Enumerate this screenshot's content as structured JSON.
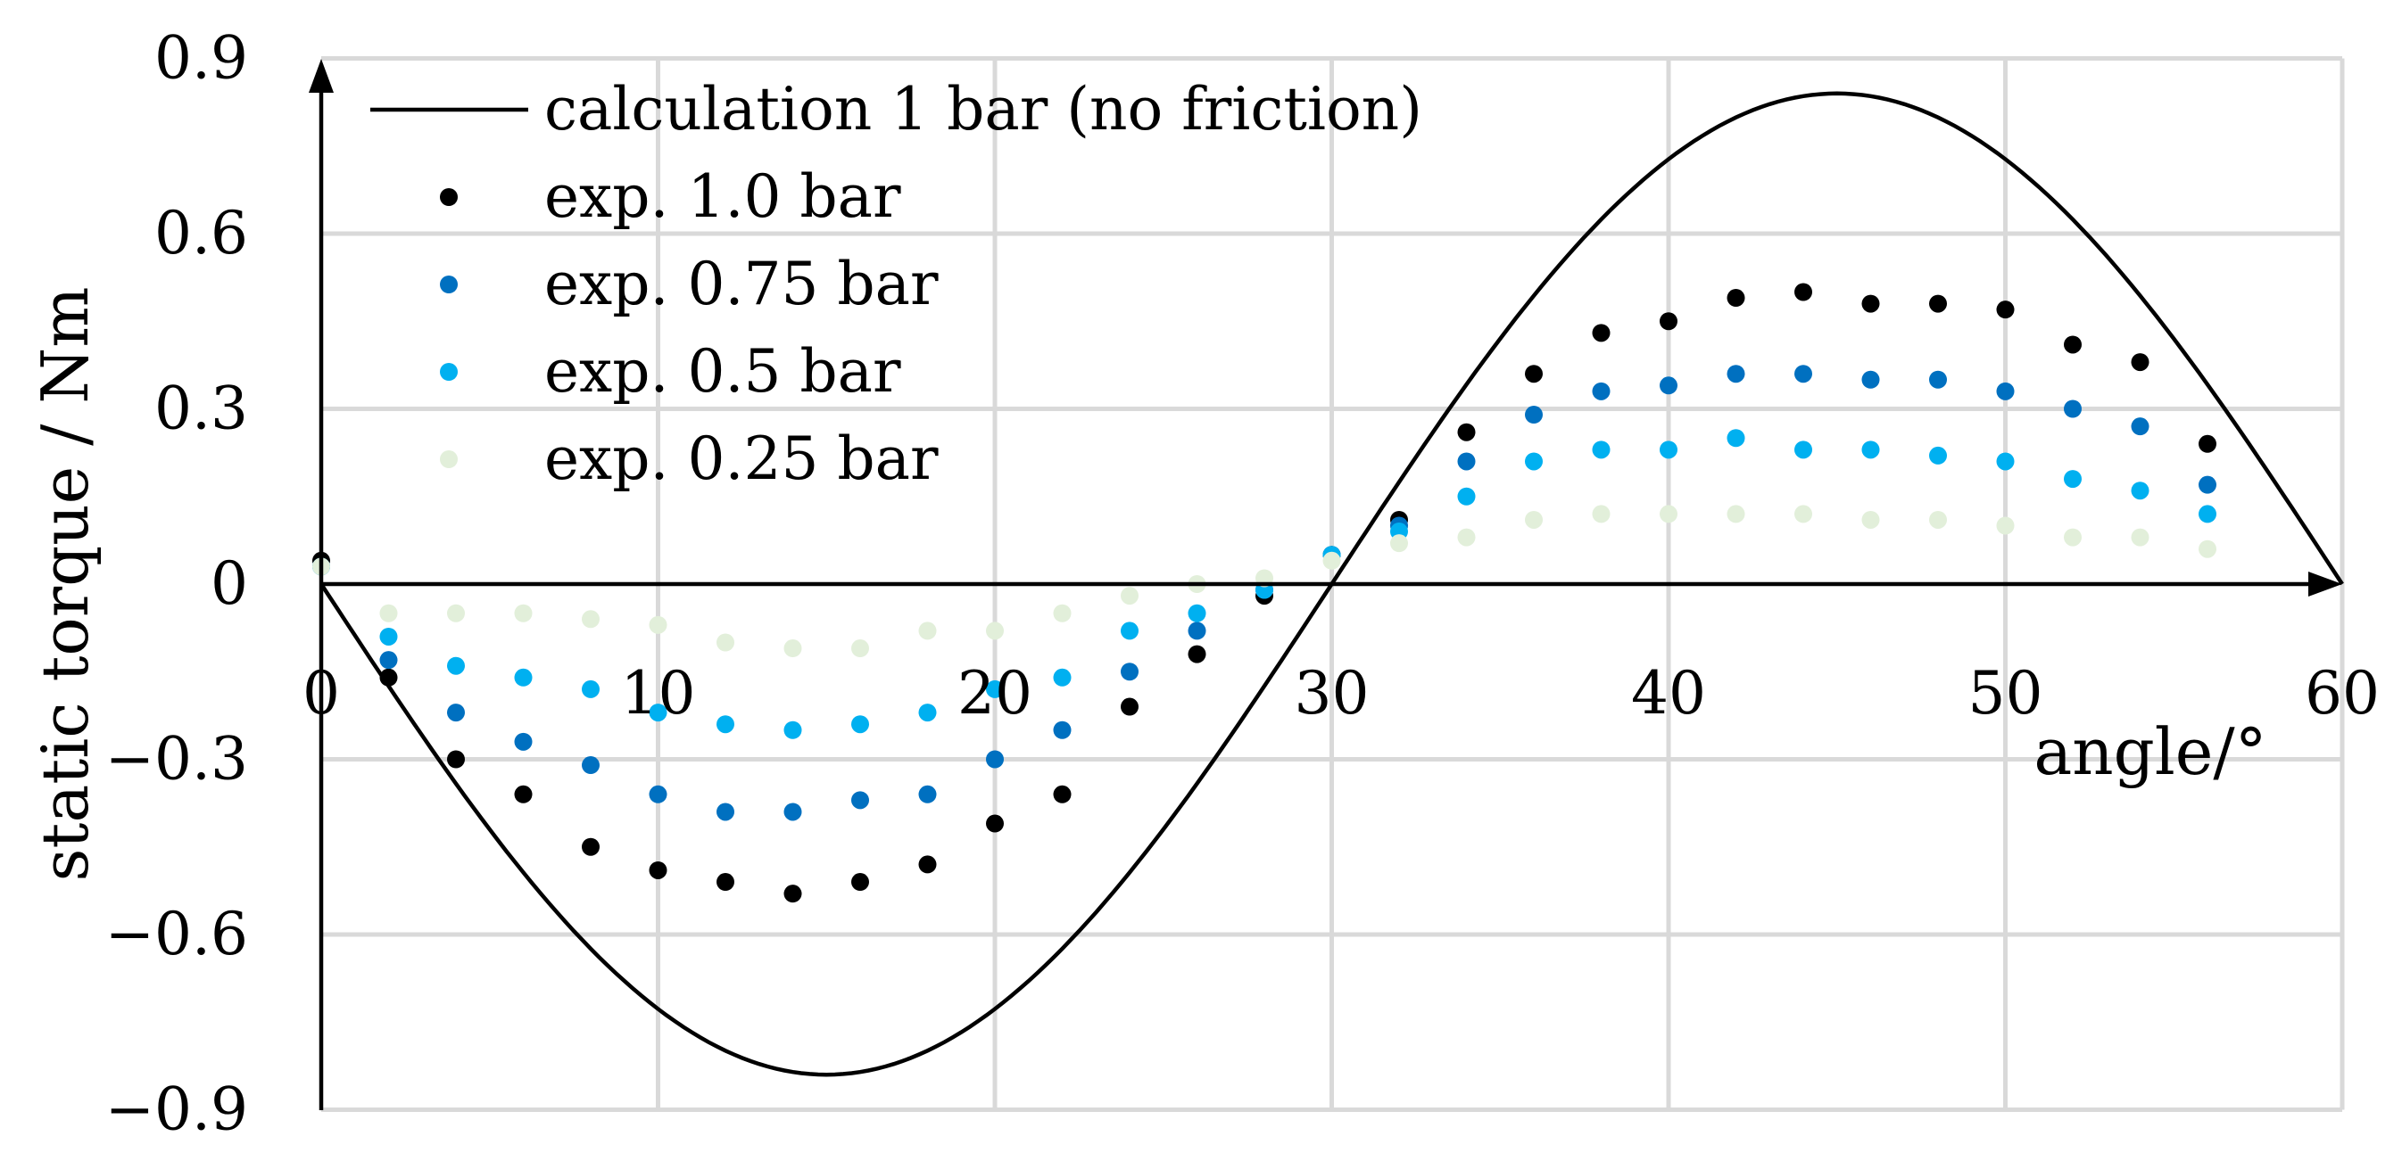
{
  "chart_data": {
    "type": "scatter",
    "title": "",
    "xlabel": "angle/°",
    "ylabel": "static torque / Nm",
    "xlim": [
      0,
      60
    ],
    "ylim": [
      -0.9,
      0.9
    ],
    "grid": true,
    "legend_position": "top-left",
    "x_ticks": [
      "0",
      "10",
      "20",
      "30",
      "40",
      "50",
      "60"
    ],
    "y_ticks": [
      "−0.9",
      "−0.6",
      "−0.3",
      "0",
      "0.3",
      "0.6",
      "0.9"
    ],
    "line_series": {
      "name": "calculation 1 bar (no friction)",
      "color": "#000000",
      "function": "sine",
      "amplitude": 0.84,
      "period": 60,
      "x_range": [
        0,
        60
      ]
    },
    "series": [
      {
        "name": "exp. 1.0 bar",
        "color": "#000000",
        "x": [
          0,
          2,
          4,
          6,
          8,
          10,
          12,
          14,
          16,
          18,
          20,
          22,
          24,
          26,
          28,
          30,
          32,
          34,
          36,
          38,
          40,
          42,
          44,
          46,
          48,
          50,
          52,
          54,
          56
        ],
        "y": [
          0.04,
          -0.16,
          -0.3,
          -0.36,
          -0.45,
          -0.49,
          -0.51,
          -0.53,
          -0.51,
          -0.48,
          -0.41,
          -0.36,
          -0.21,
          -0.12,
          -0.02,
          0.05,
          0.11,
          0.26,
          0.36,
          0.43,
          0.45,
          0.49,
          0.5,
          0.48,
          0.48,
          0.47,
          0.41,
          0.38,
          0.24
        ]
      },
      {
        "name": "exp. 0.75 bar",
        "color": "#0070c0",
        "x": [
          0,
          2,
          4,
          6,
          8,
          10,
          12,
          14,
          16,
          18,
          20,
          22,
          24,
          26,
          28,
          30,
          32,
          34,
          36,
          38,
          40,
          42,
          44,
          46,
          48,
          50,
          52,
          54,
          56
        ],
        "y": [
          0.03,
          -0.13,
          -0.22,
          -0.27,
          -0.31,
          -0.36,
          -0.39,
          -0.39,
          -0.37,
          -0.36,
          -0.3,
          -0.25,
          -0.15,
          -0.08,
          -0.01,
          0.05,
          0.1,
          0.21,
          0.29,
          0.33,
          0.34,
          0.36,
          0.36,
          0.35,
          0.35,
          0.33,
          0.3,
          0.27,
          0.17
        ]
      },
      {
        "name": "exp. 0.5 bar",
        "color": "#00b0f0",
        "x": [
          0,
          2,
          4,
          6,
          8,
          10,
          12,
          14,
          16,
          18,
          20,
          22,
          24,
          26,
          28,
          30,
          32,
          34,
          36,
          38,
          40,
          42,
          44,
          46,
          48,
          50,
          52,
          54,
          56
        ],
        "y": [
          0.03,
          -0.09,
          -0.14,
          -0.16,
          -0.18,
          -0.22,
          -0.24,
          -0.25,
          -0.24,
          -0.22,
          -0.18,
          -0.16,
          -0.08,
          -0.05,
          -0.01,
          0.05,
          0.09,
          0.15,
          0.21,
          0.23,
          0.23,
          0.25,
          0.23,
          0.23,
          0.22,
          0.21,
          0.18,
          0.16,
          0.12
        ]
      },
      {
        "name": "exp. 0.25 bar",
        "color": "#e2efda",
        "x": [
          0,
          2,
          4,
          6,
          8,
          10,
          12,
          14,
          16,
          18,
          20,
          22,
          24,
          26,
          28,
          30,
          32,
          34,
          36,
          38,
          40,
          42,
          44,
          46,
          48,
          50,
          52,
          54,
          56
        ],
        "y": [
          0.03,
          -0.05,
          -0.05,
          -0.05,
          -0.06,
          -0.07,
          -0.1,
          -0.11,
          -0.11,
          -0.08,
          -0.08,
          -0.05,
          -0.02,
          0.0,
          0.01,
          0.04,
          0.07,
          0.08,
          0.11,
          0.12,
          0.12,
          0.12,
          0.12,
          0.11,
          0.11,
          0.1,
          0.08,
          0.08,
          0.06
        ]
      }
    ]
  }
}
